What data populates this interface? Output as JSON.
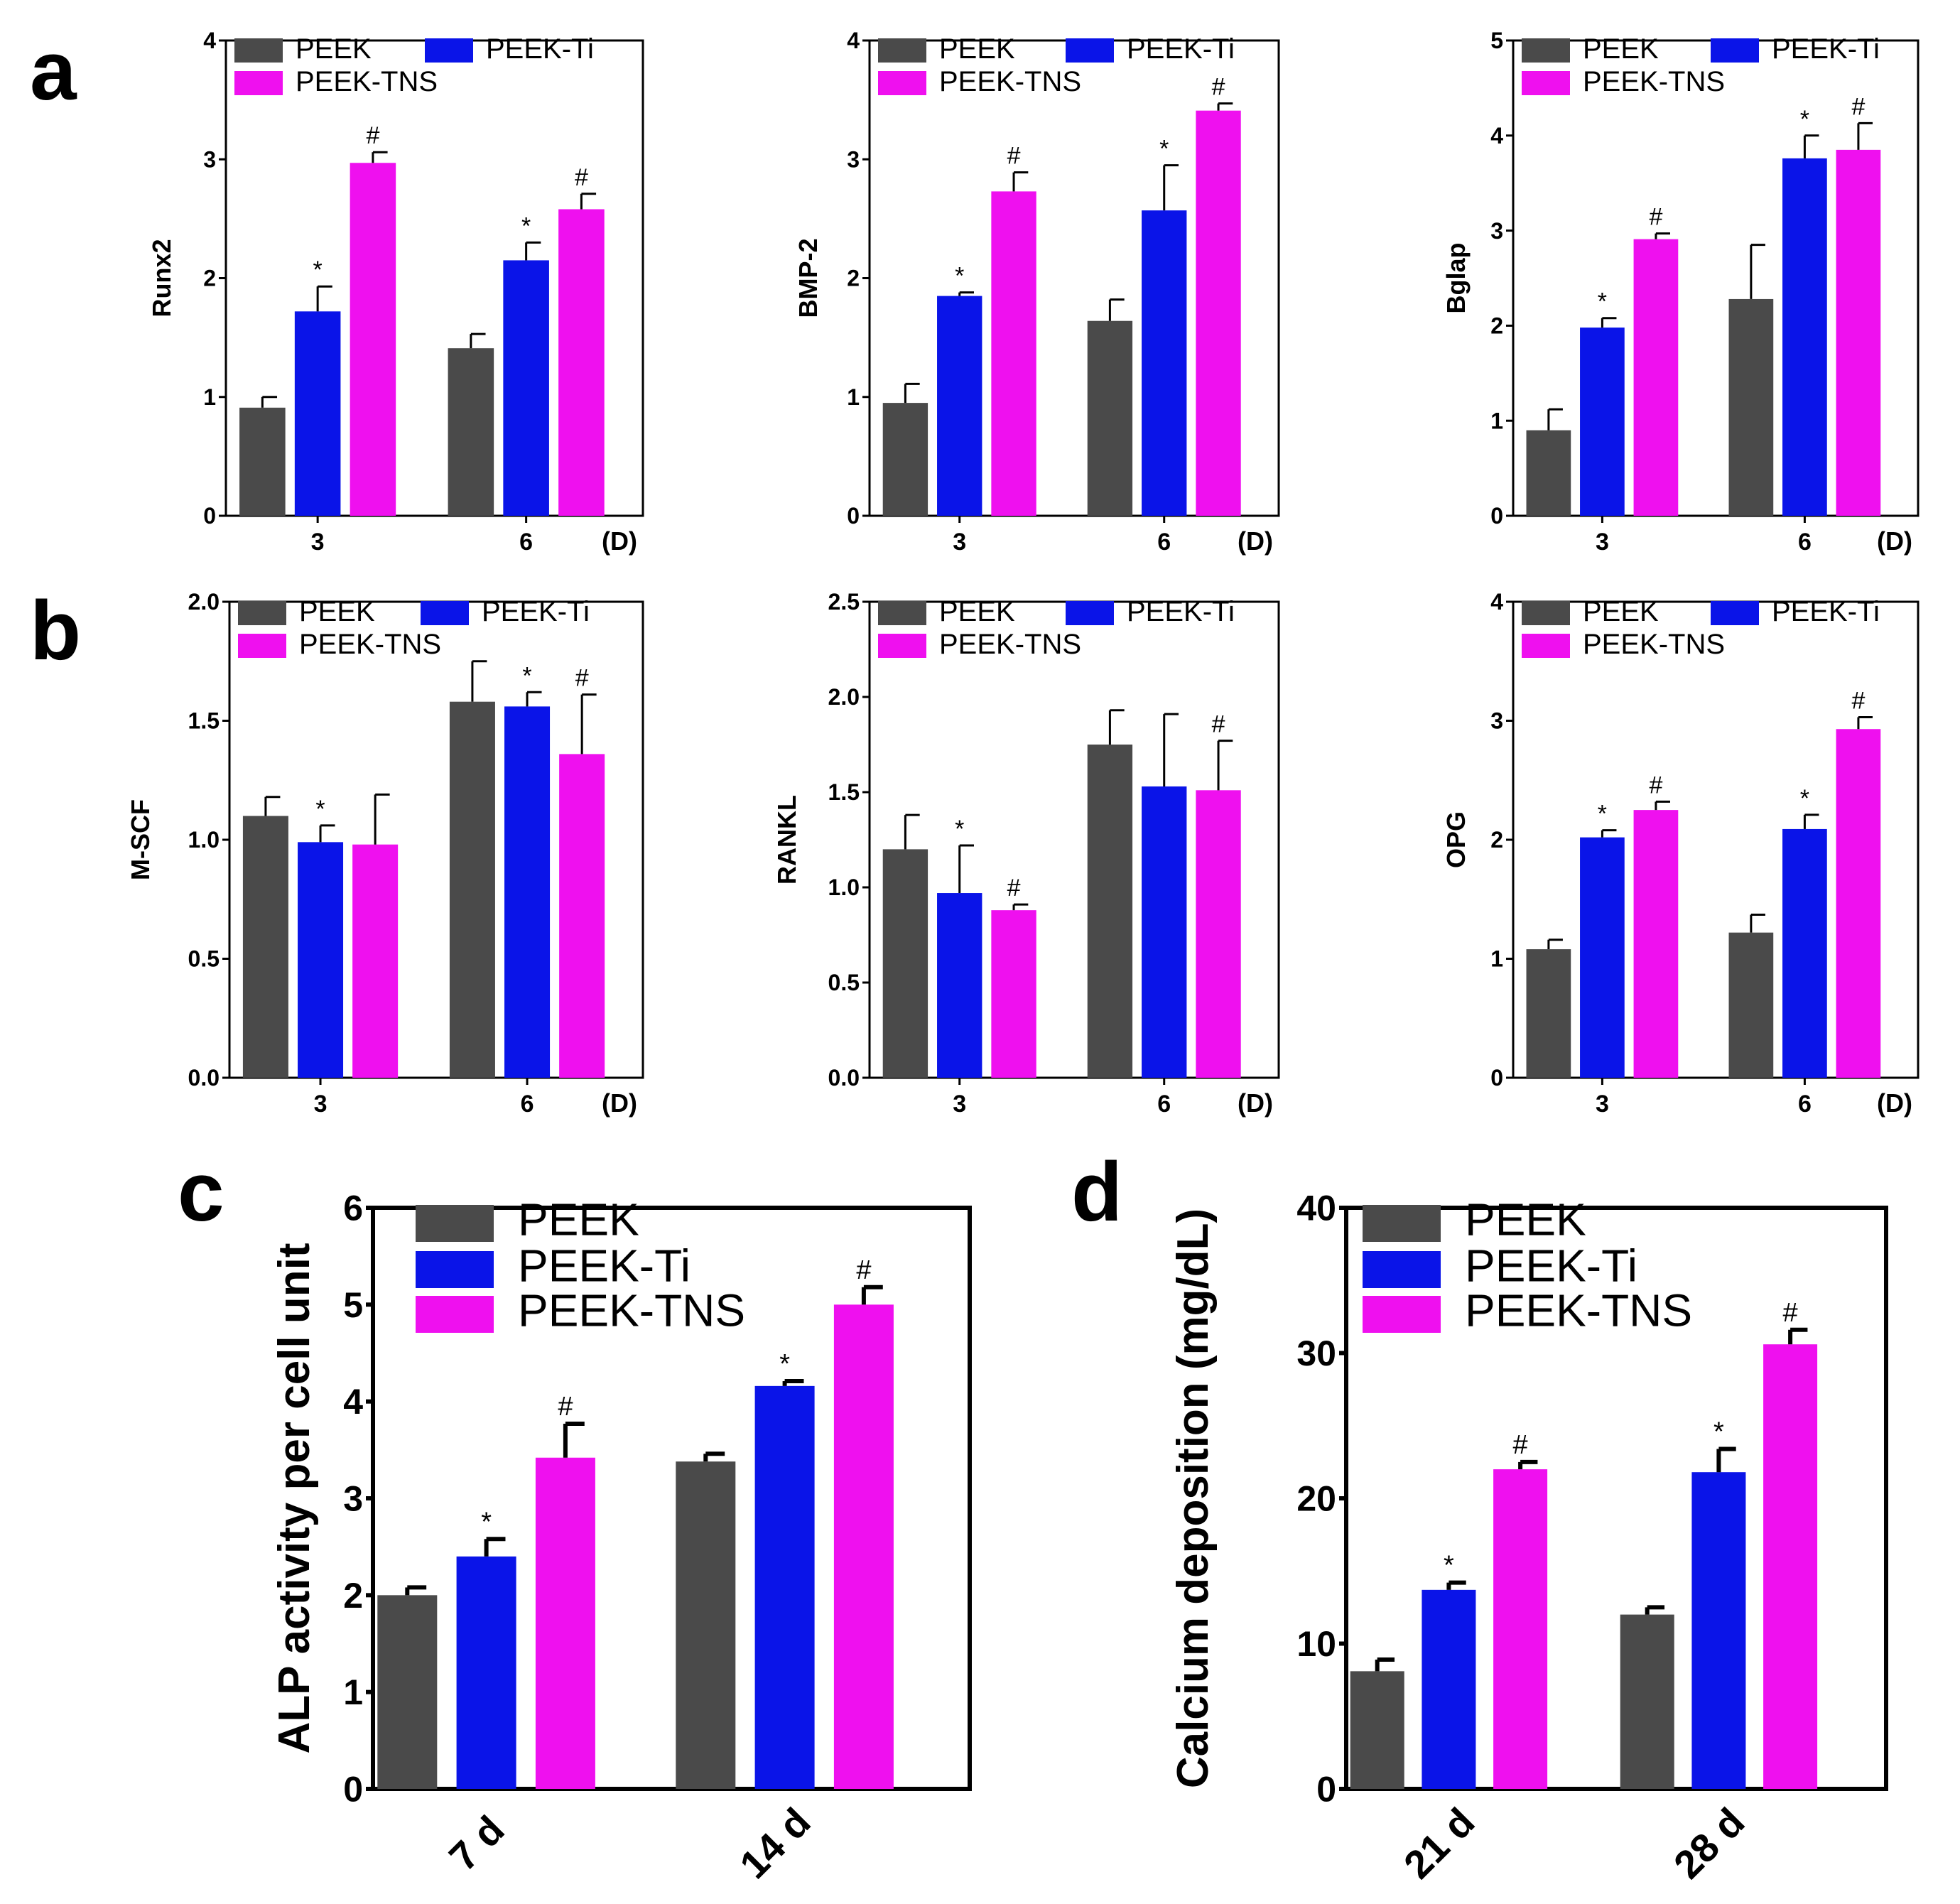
{
  "colors": {
    "PEEK": "#4a4a4a",
    "PEEK-Ti": "#0a14e8",
    "PEEK-TNS": "#ef10ef",
    "axis": "#000000"
  },
  "chart_data": [
    {
      "panel_label": "a",
      "type": "bar",
      "ylabel": "Runx2",
      "unit": "(D)",
      "categories": [
        "3",
        "6"
      ],
      "ylim": [
        0,
        4
      ],
      "yticks": [
        "0",
        "1",
        "2",
        "3",
        "4"
      ],
      "grid": false,
      "legend": "top",
      "series": [
        {
          "name": "PEEK",
          "values": [
            0.91,
            1.41
          ],
          "errors": [
            0.09,
            0.12
          ],
          "marks": [
            "",
            ""
          ]
        },
        {
          "name": "PEEK-Ti",
          "values": [
            1.72,
            2.15
          ],
          "errors": [
            0.21,
            0.15
          ],
          "marks": [
            "*",
            "*"
          ]
        },
        {
          "name": "PEEK-TNS",
          "values": [
            2.97,
            2.58
          ],
          "errors": [
            0.09,
            0.13
          ],
          "marks": [
            "#",
            "#"
          ]
        }
      ]
    },
    {
      "panel_label": "",
      "type": "bar",
      "ylabel": "BMP-2",
      "unit": "(D)",
      "categories": [
        "3",
        "6"
      ],
      "ylim": [
        0,
        4
      ],
      "yticks": [
        "0",
        "1",
        "2",
        "3",
        "4"
      ],
      "grid": false,
      "legend": "top",
      "series": [
        {
          "name": "PEEK",
          "values": [
            0.95,
            1.64
          ],
          "errors": [
            0.16,
            0.18
          ],
          "marks": [
            "",
            ""
          ]
        },
        {
          "name": "PEEK-Ti",
          "values": [
            1.85,
            2.57
          ],
          "errors": [
            0.03,
            0.38
          ],
          "marks": [
            "*",
            "*"
          ]
        },
        {
          "name": "PEEK-TNS",
          "values": [
            2.73,
            3.41
          ],
          "errors": [
            0.16,
            0.06
          ],
          "marks": [
            "#",
            "#"
          ]
        }
      ]
    },
    {
      "panel_label": "",
      "type": "bar",
      "ylabel": "Bglap",
      "unit": "(D)",
      "categories": [
        "3",
        "6"
      ],
      "ylim": [
        0,
        5
      ],
      "yticks": [
        "0",
        "1",
        "2",
        "3",
        "4",
        "5"
      ],
      "grid": false,
      "legend": "top",
      "series": [
        {
          "name": "PEEK",
          "values": [
            0.9,
            2.28
          ],
          "errors": [
            0.22,
            0.57
          ],
          "marks": [
            "",
            ""
          ]
        },
        {
          "name": "PEEK-Ti",
          "values": [
            1.98,
            3.76
          ],
          "errors": [
            0.1,
            0.24
          ],
          "marks": [
            "*",
            "*"
          ]
        },
        {
          "name": "PEEK-TNS",
          "values": [
            2.91,
            3.85
          ],
          "errors": [
            0.06,
            0.28
          ],
          "marks": [
            "#",
            "#"
          ]
        }
      ]
    },
    {
      "panel_label": "b",
      "type": "bar",
      "ylabel": "M-SCF",
      "unit": "(D)",
      "categories": [
        "3",
        "6"
      ],
      "ylim": [
        0,
        2
      ],
      "yticks": [
        "0.0",
        "0.5",
        "1.0",
        "1.5",
        "2.0"
      ],
      "grid": false,
      "legend": "top",
      "series": [
        {
          "name": "PEEK",
          "values": [
            1.1,
            1.58
          ],
          "errors": [
            0.08,
            0.17
          ],
          "marks": [
            "",
            ""
          ]
        },
        {
          "name": "PEEK-Ti",
          "values": [
            0.99,
            1.56
          ],
          "errors": [
            0.07,
            0.06
          ],
          "marks": [
            "*",
            "*"
          ]
        },
        {
          "name": "PEEK-TNS",
          "values": [
            0.98,
            1.36
          ],
          "errors": [
            0.21,
            0.25
          ],
          "marks": [
            "",
            "#"
          ]
        }
      ]
    },
    {
      "panel_label": "",
      "type": "bar",
      "ylabel": "RANKL",
      "unit": "(D)",
      "categories": [
        "3",
        "6"
      ],
      "ylim": [
        0,
        2.5
      ],
      "yticks": [
        "0.0",
        "0.5",
        "1.0",
        "1.5",
        "2.0",
        "2.5"
      ],
      "grid": false,
      "legend": "top",
      "series": [
        {
          "name": "PEEK",
          "values": [
            1.2,
            1.75
          ],
          "errors": [
            0.18,
            0.18
          ],
          "marks": [
            "",
            ""
          ]
        },
        {
          "name": "PEEK-Ti",
          "values": [
            0.97,
            1.53
          ],
          "errors": [
            0.25,
            0.38
          ],
          "marks": [
            "*",
            ""
          ]
        },
        {
          "name": "PEEK-TNS",
          "values": [
            0.88,
            1.51
          ],
          "errors": [
            0.03,
            0.26
          ],
          "marks": [
            "#",
            "#"
          ]
        }
      ]
    },
    {
      "panel_label": "",
      "type": "bar",
      "ylabel": "OPG",
      "unit": "(D)",
      "categories": [
        "3",
        "6"
      ],
      "ylim": [
        0,
        4
      ],
      "yticks": [
        "0",
        "1",
        "2",
        "3",
        "4"
      ],
      "grid": false,
      "legend": "top",
      "series": [
        {
          "name": "PEEK",
          "values": [
            1.08,
            1.22
          ],
          "errors": [
            0.08,
            0.15
          ],
          "marks": [
            "",
            ""
          ]
        },
        {
          "name": "PEEK-Ti",
          "values": [
            2.02,
            2.09
          ],
          "errors": [
            0.06,
            0.12
          ],
          "marks": [
            "*",
            "*"
          ]
        },
        {
          "name": "PEEK-TNS",
          "values": [
            2.25,
            2.93
          ],
          "errors": [
            0.07,
            0.1
          ],
          "marks": [
            "#",
            "#"
          ]
        }
      ]
    },
    {
      "panel_label": "c",
      "type": "bar",
      "ylabel": "ALP activity per cell unit",
      "unit": "",
      "categories": [
        "7 d",
        "14 d"
      ],
      "ylim": [
        0,
        6
      ],
      "yticks": [
        "0",
        "1",
        "2",
        "3",
        "4",
        "5",
        "6"
      ],
      "grid": false,
      "legend": "top-left",
      "series": [
        {
          "name": "PEEK",
          "values": [
            2.0,
            3.38
          ],
          "errors": [
            0.08,
            0.08
          ],
          "marks": [
            "",
            ""
          ]
        },
        {
          "name": "PEEK-Ti",
          "values": [
            2.4,
            4.16
          ],
          "errors": [
            0.18,
            0.05
          ],
          "marks": [
            "*",
            "*"
          ]
        },
        {
          "name": "PEEK-TNS",
          "values": [
            3.42,
            5.0
          ],
          "errors": [
            0.35,
            0.18
          ],
          "marks": [
            "#",
            "#"
          ]
        }
      ]
    },
    {
      "panel_label": "d",
      "type": "bar",
      "ylabel": "Calcium deposition (mg/dL)",
      "unit": "",
      "categories": [
        "21 d",
        "28 d"
      ],
      "ylim": [
        0,
        40
      ],
      "yticks": [
        "0",
        "10",
        "20",
        "30",
        "40"
      ],
      "grid": false,
      "legend": "top-left",
      "series": [
        {
          "name": "PEEK",
          "values": [
            8.1,
            12.0
          ],
          "errors": [
            0.8,
            0.5
          ],
          "marks": [
            "",
            ""
          ]
        },
        {
          "name": "PEEK-Ti",
          "values": [
            13.7,
            21.8
          ],
          "errors": [
            0.5,
            1.6
          ],
          "marks": [
            "*",
            "*"
          ]
        },
        {
          "name": "PEEK-TNS",
          "values": [
            22.0,
            30.6
          ],
          "errors": [
            0.5,
            1.0
          ],
          "marks": [
            "#",
            "#"
          ]
        }
      ]
    }
  ]
}
